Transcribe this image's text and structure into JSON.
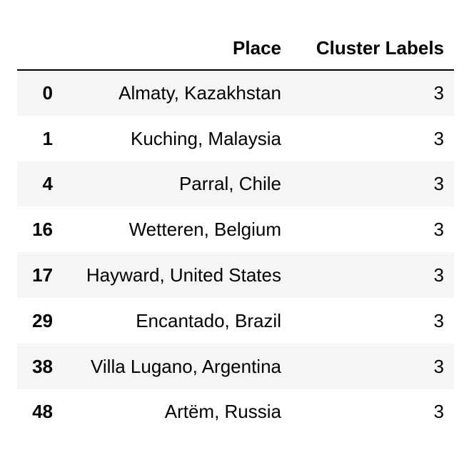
{
  "table": {
    "columns": [
      "",
      "Place",
      "Cluster Labels"
    ],
    "rows": [
      {
        "index": "0",
        "place": "Almaty, Kazakhstan",
        "cluster": "3"
      },
      {
        "index": "1",
        "place": "Kuching, Malaysia",
        "cluster": "3"
      },
      {
        "index": "4",
        "place": "Parral, Chile",
        "cluster": "3"
      },
      {
        "index": "16",
        "place": "Wetteren, Belgium",
        "cluster": "3"
      },
      {
        "index": "17",
        "place": "Hayward, United States",
        "cluster": "3"
      },
      {
        "index": "29",
        "place": "Encantado, Brazil",
        "cluster": "3"
      },
      {
        "index": "38",
        "place": "Villa Lugano, Argentina",
        "cluster": "3"
      },
      {
        "index": "48",
        "place": "Artëm, Russia",
        "cluster": "3"
      }
    ]
  }
}
